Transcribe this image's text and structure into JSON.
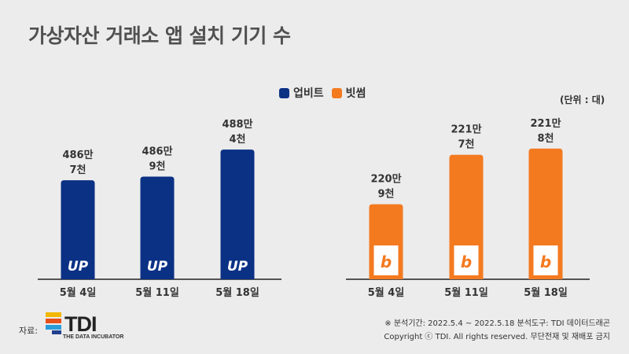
{
  "title": "가상자산 거래소 앱 설치 기기 수",
  "unit_label": "(단위 : 대)",
  "legend": [
    {
      "label": "업비트",
      "color": "#0b3185"
    },
    {
      "label": "빗썸",
      "color": "#f47a20"
    }
  ],
  "colors": {
    "upbit": "#0b3185",
    "bithumb": "#f47a20",
    "axis": "#222222",
    "background": "#ececec"
  },
  "chart_data": [
    {
      "type": "bar",
      "categories": [
        "5월 4일",
        "5월 11일",
        "5월 18일"
      ],
      "series": [
        {
          "name": "업비트",
          "values": [
            4867000,
            4869000,
            4884000
          ]
        }
      ],
      "data_labels": [
        [
          "486만",
          "7천"
        ],
        [
          "486만",
          "9천"
        ],
        [
          "488만",
          "4천"
        ]
      ],
      "bar_logo": "UP",
      "ylim": [
        4840000,
        4888000
      ]
    },
    {
      "type": "bar",
      "categories": [
        "5월 4일",
        "5월 11일",
        "5월 18일"
      ],
      "series": [
        {
          "name": "빗썸",
          "values": [
            2209000,
            2217000,
            2218000
          ]
        }
      ],
      "data_labels": [
        [
          "220만",
          "9천"
        ],
        [
          "221만",
          "7천"
        ],
        [
          "221만",
          "8천"
        ]
      ],
      "bar_logo": "b",
      "ylim": [
        2205000,
        2219000
      ]
    }
  ],
  "source": {
    "label": "자료:",
    "logo_text": "TDI",
    "logo_subtitle": "THE DATA INCUBATOR",
    "logo_colors": [
      "#f2b705",
      "#e8501a",
      "#2a9cd8",
      "#1f3f8f"
    ]
  },
  "footnote": "※ 분석기간: 2022.5.4 ~ 2022.5.18   분석도구: TDI 데이터드래곤",
  "copyright": "Copyright ⓒ TDI. All rights reserved. 무단전재 및 재배포 금지"
}
